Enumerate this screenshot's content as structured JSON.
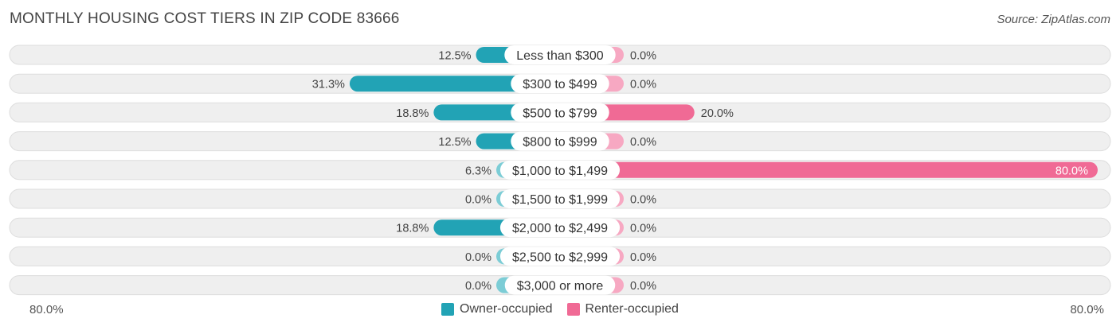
{
  "title": "MONTHLY HOUSING COST TIERS IN ZIP CODE 83666",
  "source": "Source: ZipAtlas.com",
  "colors": {
    "owner": "#22a3b5",
    "owner_light": "#7ccdd6",
    "renter": "#f06a95",
    "renter_light": "#f7a8c2",
    "track": "#efefef",
    "track_border": "#dddddd"
  },
  "axis": {
    "left_label": "80.0%",
    "right_label": "80.0%"
  },
  "legend": {
    "owner": "Owner-occupied",
    "renter": "Renter-occupied"
  },
  "chart_data": {
    "type": "bar",
    "orientation": "diverging-horizontal",
    "xlim": [
      -80,
      80
    ],
    "categories": [
      "Less than $300",
      "$300 to $499",
      "$500 to $799",
      "$800 to $999",
      "$1,000 to $1,499",
      "$1,500 to $1,999",
      "$2,000 to $2,499",
      "$2,500 to $2,999",
      "$3,000 or more"
    ],
    "series": [
      {
        "name": "Owner-occupied",
        "values": [
          12.5,
          31.3,
          18.8,
          12.5,
          6.3,
          0.0,
          18.8,
          0.0,
          0.0
        ],
        "labels": [
          "12.5%",
          "31.3%",
          "18.8%",
          "12.5%",
          "6.3%",
          "0.0%",
          "18.8%",
          "0.0%",
          "0.0%"
        ]
      },
      {
        "name": "Renter-occupied",
        "values": [
          0.0,
          0.0,
          20.0,
          0.0,
          80.0,
          0.0,
          0.0,
          0.0,
          0.0
        ],
        "labels": [
          "0.0%",
          "0.0%",
          "20.0%",
          "0.0%",
          "80.0%",
          "0.0%",
          "0.0%",
          "0.0%",
          "0.0%"
        ]
      }
    ]
  }
}
